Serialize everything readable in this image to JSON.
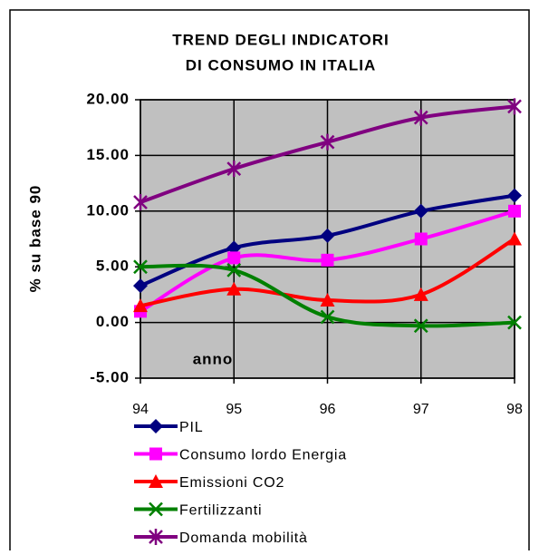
{
  "chart_data": {
    "type": "line",
    "title": [
      "TREND DEGLI INDICATORI",
      "DI CONSUMO IN ITALIA"
    ],
    "y_label": "% su base 90",
    "x_label": "anno",
    "categories": [
      "94",
      "95",
      "96",
      "97",
      "98"
    ],
    "ylim": [
      -5,
      20
    ],
    "yticks": [
      {
        "value": -5,
        "label": "-5.00"
      },
      {
        "value": 0,
        "label": "0.00"
      },
      {
        "value": 5,
        "label": "5.00"
      },
      {
        "value": 10,
        "label": "10.00"
      },
      {
        "value": 15,
        "label": "15.00"
      },
      {
        "value": 20,
        "label": "20.00"
      }
    ],
    "grid": true,
    "smooth": true,
    "legend": "bottom",
    "series": [
      {
        "name": "PIL",
        "color": "#000080",
        "marker": "diamond",
        "values": [
          3.3,
          6.7,
          7.8,
          10.0,
          11.4
        ]
      },
      {
        "name": "Consumo lordo Energia",
        "color": "#ff00ff",
        "marker": "square",
        "values": [
          1.0,
          5.8,
          5.6,
          7.5,
          10.0
        ]
      },
      {
        "name": "Emissioni CO2",
        "color": "#ff0000",
        "marker": "triangle",
        "values": [
          1.5,
          3.0,
          2.0,
          2.5,
          7.5
        ]
      },
      {
        "name": "Fertilizzanti",
        "color": "#008000",
        "marker": "x",
        "values": [
          5.0,
          4.7,
          0.5,
          -0.3,
          0.0
        ]
      },
      {
        "name": "Domanda mobilità",
        "color": "#800080",
        "marker": "star",
        "values": [
          10.8,
          13.8,
          16.2,
          18.4,
          19.4
        ]
      }
    ]
  }
}
